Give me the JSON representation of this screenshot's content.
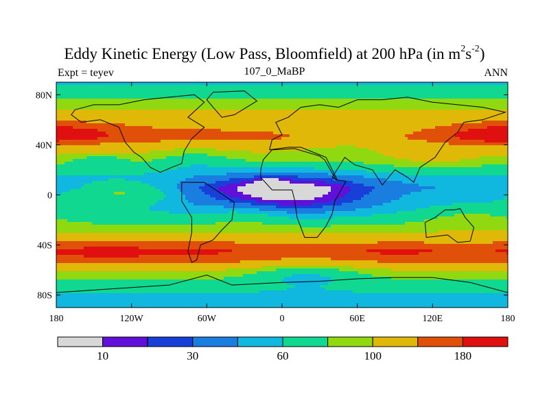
{
  "title": {
    "main": "Eddy Kinetic Energy (Low Pass, Bloomfield) at 200 hPa (in m",
    "sup1": "2",
    "mid": "s",
    "sup2": "-2",
    "close": ")"
  },
  "subtitle_left": "Expt = teyev",
  "subtitle_center": "107_0_MaBP",
  "subtitle_right": "ANN",
  "chart_data": {
    "type": "heatmap",
    "title": "Eddy Kinetic Energy (Low Pass, Bloomfield) at 200 hPa (in m^2 s^-2)",
    "xlabel": "",
    "ylabel": "",
    "xlim": [
      -180,
      180
    ],
    "ylim": [
      -90,
      90
    ],
    "x_ticks": [
      {
        "value": -180,
        "label": "180"
      },
      {
        "value": -120,
        "label": "120W"
      },
      {
        "value": -60,
        "label": "60W"
      },
      {
        "value": 0,
        "label": "0"
      },
      {
        "value": 60,
        "label": "60E"
      },
      {
        "value": 120,
        "label": "120E"
      },
      {
        "value": 180,
        "label": "180"
      }
    ],
    "y_ticks": [
      {
        "value": 80,
        "label": "80N"
      },
      {
        "value": 40,
        "label": "40N"
      },
      {
        "value": 0,
        "label": "0"
      },
      {
        "value": -40,
        "label": "40S"
      },
      {
        "value": -80,
        "label": "80S"
      }
    ],
    "colorbar": {
      "levels": [
        0,
        10,
        20,
        30,
        45,
        60,
        80,
        100,
        140,
        180,
        220
      ],
      "tick_labels": [
        {
          "value": 10,
          "label": "10"
        },
        {
          "value": 30,
          "label": "30"
        },
        {
          "value": 60,
          "label": "60"
        },
        {
          "value": 100,
          "label": "100"
        },
        {
          "value": 180,
          "label": "180"
        }
      ],
      "colors": [
        "#d8d8d8",
        "#6010d8",
        "#1840d8",
        "#1a7ee0",
        "#10b8e0",
        "#10d890",
        "#90d810",
        "#e0b808",
        "#e05008",
        "#e01010"
      ]
    },
    "bands": [
      {
        "lat": 90,
        "value": 58
      },
      {
        "lat": 82,
        "value": 64
      },
      {
        "lat": 74,
        "value": 85
      },
      {
        "lat": 64,
        "value": 110
      },
      {
        "lat": 54,
        "value": 135
      },
      {
        "lat": 46,
        "value": 155
      },
      {
        "lat": 38,
        "value": 115
      },
      {
        "lat": 30,
        "value": 92
      },
      {
        "lat": 22,
        "value": 72
      },
      {
        "lat": 14,
        "value": 55
      },
      {
        "lat": 6,
        "value": 48
      },
      {
        "lat": 0,
        "value": 55
      },
      {
        "lat": -6,
        "value": 58
      },
      {
        "lat": -12,
        "value": 62
      },
      {
        "lat": -20,
        "value": 72
      },
      {
        "lat": -28,
        "value": 90
      },
      {
        "lat": -36,
        "value": 120
      },
      {
        "lat": -44,
        "value": 160
      },
      {
        "lat": -52,
        "value": 145
      },
      {
        "lat": -60,
        "value": 105
      },
      {
        "lat": -68,
        "value": 80
      },
      {
        "lat": -76,
        "value": 64
      },
      {
        "lat": -84,
        "value": 52
      },
      {
        "lat": -90,
        "value": 48
      }
    ],
    "anomalies": [
      {
        "lon": 0,
        "lat": 2,
        "rlon": 70,
        "rlat": 16,
        "amp": -45
      },
      {
        "lon": 5,
        "lat": -4,
        "rlon": 90,
        "rlat": 14,
        "amp": -12
      },
      {
        "lon": -10,
        "lat": 8,
        "rlon": 12,
        "rlat": 6,
        "amp": -25
      },
      {
        "lon": -125,
        "lat": 2,
        "rlon": 42,
        "rlat": 9,
        "amp": 30
      },
      {
        "lon": -165,
        "lat": 50,
        "rlon": 45,
        "rlat": 8,
        "amp": 40
      },
      {
        "lon": 165,
        "lat": 48,
        "rlon": 35,
        "rlat": 8,
        "amp": 45
      },
      {
        "lon": 55,
        "lat": 44,
        "rlon": 60,
        "rlat": 10,
        "amp": -25
      },
      {
        "lon": -140,
        "lat": -46,
        "rlon": 70,
        "rlat": 9,
        "amp": 35
      },
      {
        "lon": -55,
        "lat": -45,
        "rlon": 40,
        "rlat": 8,
        "amp": 20
      },
      {
        "lon": 90,
        "lat": -45,
        "rlon": 40,
        "rlat": 7,
        "amp": 30
      },
      {
        "lon": 20,
        "lat": -62,
        "rlon": 50,
        "rlat": 10,
        "amp": -35
      },
      {
        "lon": -70,
        "lat": 30,
        "rlon": 30,
        "rlat": 10,
        "amp": -20
      },
      {
        "lon": 120,
        "lat": 30,
        "rlon": 40,
        "rlat": 10,
        "amp": 20
      },
      {
        "lon": -145,
        "lat": 28,
        "rlon": 20,
        "rlat": 4,
        "amp": -20
      },
      {
        "lon": -30,
        "lat": -15,
        "rlon": 30,
        "rlat": 12,
        "amp": 15
      },
      {
        "lon": 150,
        "lat": -20,
        "rlon": 40,
        "rlat": 10,
        "amp": 18
      }
    ],
    "coastlines": [
      {
        "name": "north-america",
        "points": [
          [
            -165,
            68
          ],
          [
            -150,
            72
          ],
          [
            -130,
            72
          ],
          [
            -110,
            76
          ],
          [
            -90,
            78
          ],
          [
            -70,
            80
          ],
          [
            -62,
            74
          ],
          [
            -75,
            62
          ],
          [
            -62,
            54
          ],
          [
            -72,
            45
          ],
          [
            -78,
            35
          ],
          [
            -80,
            25
          ],
          [
            -88,
            22
          ],
          [
            -97,
            18
          ],
          [
            -105,
            22
          ],
          [
            -112,
            30
          ],
          [
            -118,
            34
          ],
          [
            -125,
            42
          ],
          [
            -130,
            54
          ],
          [
            -145,
            60
          ],
          [
            -160,
            58
          ],
          [
            -168,
            64
          ],
          [
            -165,
            68
          ]
        ]
      },
      {
        "name": "greenland",
        "points": [
          [
            -55,
            82
          ],
          [
            -30,
            83
          ],
          [
            -20,
            75
          ],
          [
            -38,
            64
          ],
          [
            -48,
            62
          ],
          [
            -55,
            70
          ],
          [
            -60,
            76
          ],
          [
            -55,
            82
          ]
        ]
      },
      {
        "name": "south-america",
        "points": [
          [
            -80,
            10
          ],
          [
            -62,
            10
          ],
          [
            -50,
            2
          ],
          [
            -38,
            -6
          ],
          [
            -40,
            -20
          ],
          [
            -48,
            -28
          ],
          [
            -55,
            -36
          ],
          [
            -65,
            -40
          ],
          [
            -68,
            -52
          ],
          [
            -72,
            -54
          ],
          [
            -75,
            -45
          ],
          [
            -72,
            -30
          ],
          [
            -72,
            -18
          ],
          [
            -80,
            -5
          ],
          [
            -80,
            10
          ]
        ]
      },
      {
        "name": "eurasia",
        "points": [
          [
            -10,
            36
          ],
          [
            -8,
            44
          ],
          [
            0,
            48
          ],
          [
            -5,
            58
          ],
          [
            5,
            62
          ],
          [
            15,
            70
          ],
          [
            30,
            72
          ],
          [
            45,
            70
          ],
          [
            60,
            76
          ],
          [
            80,
            76
          ],
          [
            100,
            78
          ],
          [
            120,
            74
          ],
          [
            140,
            72
          ],
          [
            160,
            70
          ],
          [
            178,
            66
          ],
          [
            160,
            60
          ],
          [
            145,
            58
          ],
          [
            140,
            50
          ],
          [
            130,
            42
          ],
          [
            122,
            30
          ],
          [
            110,
            22
          ],
          [
            105,
            10
          ],
          [
            100,
            14
          ],
          [
            90,
            20
          ],
          [
            80,
            8
          ],
          [
            72,
            20
          ],
          [
            58,
            24
          ],
          [
            50,
            30
          ],
          [
            40,
            14
          ],
          [
            44,
            12
          ],
          [
            35,
            30
          ],
          [
            30,
            32
          ],
          [
            15,
            38
          ],
          [
            5,
            38
          ],
          [
            -10,
            36
          ]
        ]
      },
      {
        "name": "africa",
        "points": [
          [
            -17,
            20
          ],
          [
            -15,
            28
          ],
          [
            -8,
            36
          ],
          [
            10,
            37
          ],
          [
            30,
            31
          ],
          [
            34,
            28
          ],
          [
            43,
            12
          ],
          [
            51,
            11
          ],
          [
            42,
            -5
          ],
          [
            40,
            -15
          ],
          [
            35,
            -25
          ],
          [
            28,
            -34
          ],
          [
            18,
            -34
          ],
          [
            12,
            -18
          ],
          [
            10,
            -4
          ],
          [
            8,
            4
          ],
          [
            -8,
            4
          ],
          [
            -17,
            14
          ],
          [
            -17,
            20
          ]
        ]
      },
      {
        "name": "australia",
        "points": [
          [
            114,
            -22
          ],
          [
            122,
            -18
          ],
          [
            130,
            -12
          ],
          [
            137,
            -12
          ],
          [
            142,
            -11
          ],
          [
            146,
            -18
          ],
          [
            153,
            -26
          ],
          [
            150,
            -37
          ],
          [
            140,
            -38
          ],
          [
            132,
            -32
          ],
          [
            115,
            -34
          ],
          [
            114,
            -22
          ]
        ]
      },
      {
        "name": "antarctica",
        "points": [
          [
            -180,
            -78
          ],
          [
            -150,
            -76
          ],
          [
            -120,
            -74
          ],
          [
            -90,
            -72
          ],
          [
            -60,
            -64
          ],
          [
            -40,
            -72
          ],
          [
            0,
            -70
          ],
          [
            30,
            -69
          ],
          [
            60,
            -67
          ],
          [
            90,
            -66
          ],
          [
            120,
            -66
          ],
          [
            150,
            -70
          ],
          [
            180,
            -78
          ]
        ]
      }
    ]
  }
}
